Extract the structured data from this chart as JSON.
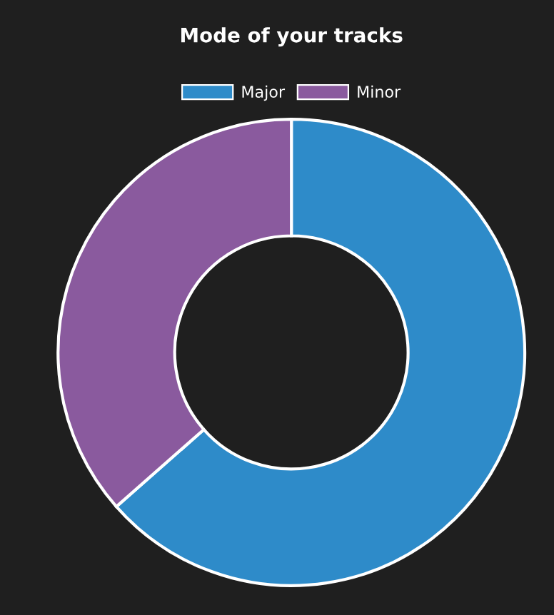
{
  "chart_data": {
    "type": "donut",
    "title": "Mode of your tracks",
    "categories": [
      "Major",
      "Minor"
    ],
    "values": [
      63.5,
      36.5
    ],
    "colors": [
      "#2e8bc9",
      "#8a5a9e"
    ],
    "legend": "top"
  }
}
